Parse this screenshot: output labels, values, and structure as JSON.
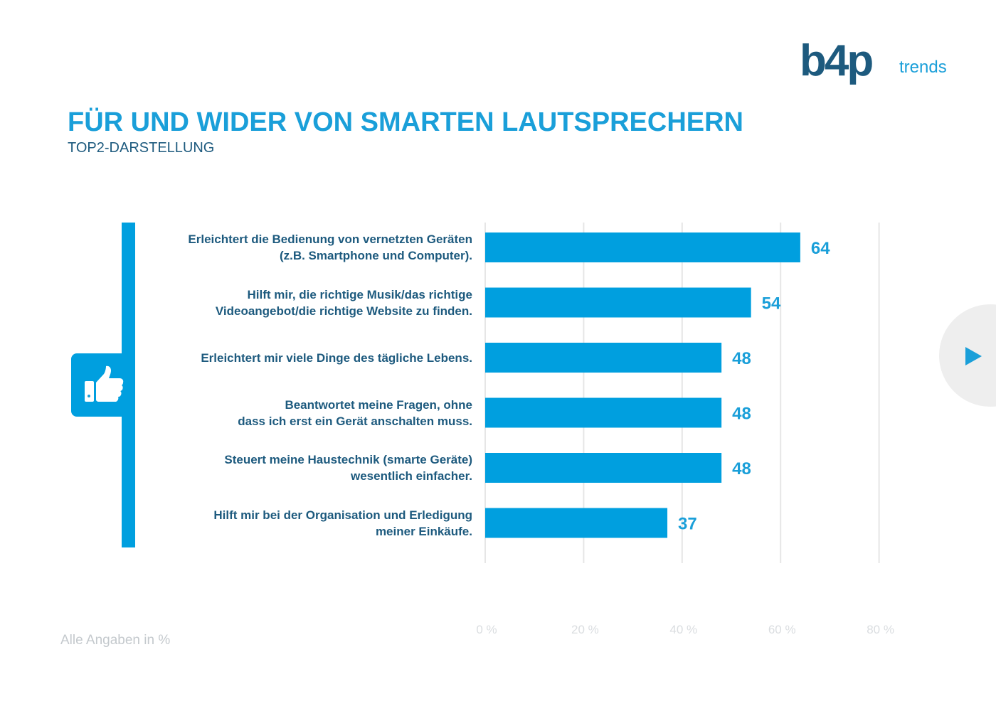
{
  "header": {
    "title": "FÜR UND WIDER VON SMARTEN LAUTSPRECHERN",
    "subtitle": "TOP2-DARSTELLUNG"
  },
  "logo": {
    "main": "b4p",
    "sub": "trends"
  },
  "footer": {
    "note": "Alle Angaben in %"
  },
  "colors": {
    "accent": "#1a9fd9",
    "dark": "#1d5a7e",
    "bar": "#009fdf",
    "grid": "#e6e6e6"
  },
  "icons": {
    "thumb": "thumbs-up-icon",
    "nav": "play-arrow-icon"
  },
  "chart_data": {
    "type": "bar",
    "orientation": "horizontal",
    "title": "FÜR UND WIDER VON SMARTEN LAUTSPRECHERN",
    "subtitle": "TOP2-DARSTELLUNG",
    "categories": [
      [
        "Erleichtert die Bedienung von vernetzten Geräten",
        "(z.B. Smartphone und Computer)."
      ],
      [
        "Hilft mir, die richtige Musik/das richtige",
        "Videoangebot/die richtige Website zu finden."
      ],
      [
        "Erleichtert mir viele Dinge des tägliche Lebens."
      ],
      [
        "Beantwortet meine Fragen, ohne",
        "dass ich erst ein Gerät anschalten muss."
      ],
      [
        "Steuert meine Haustechnik (smarte Geräte)",
        "wesentlich einfacher."
      ],
      [
        "Hilft mir bei der Organisation und Erledigung",
        "meiner Einkäufe."
      ]
    ],
    "values": [
      64,
      54,
      48,
      48,
      48,
      37
    ],
    "xlim": [
      0,
      80
    ],
    "xticks": [
      0,
      20,
      40,
      60,
      80
    ],
    "xtick_labels": [
      "0 %",
      "20 %",
      "40 %",
      "60 %",
      "80 %"
    ],
    "grid": true,
    "data_labels": true
  }
}
